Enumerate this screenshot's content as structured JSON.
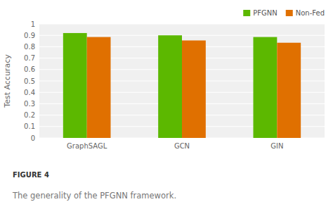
{
  "chart_data": {
    "type": "bar",
    "categories": [
      "GraphSAGL",
      "GCN",
      "GIN"
    ],
    "series": [
      {
        "name": "PFGNN",
        "color": "#5cb800",
        "values": [
          0.92,
          0.9,
          0.885
        ]
      },
      {
        "name": "Non-Fed",
        "color": "#e07000",
        "values": [
          0.885,
          0.855,
          0.835
        ]
      }
    ],
    "y_label": "Test Accuracy",
    "ylim": [
      0,
      1.0
    ],
    "yticks": [
      0,
      0.1,
      0.2,
      0.3,
      0.4,
      0.5,
      0.6,
      0.7,
      0.8,
      0.9,
      1
    ],
    "grid": true,
    "legend": "upper right",
    "annotations": [
      "FIGURE 4",
      "The generality of the PFGNN framework."
    ]
  }
}
